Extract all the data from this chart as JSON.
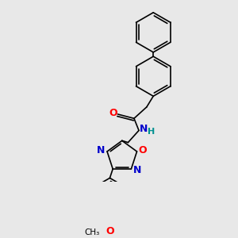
{
  "bg_color": "#e8e8e8",
  "line_color": "#000000",
  "bond_lw": 1.2,
  "atom_colors": {
    "O": "#ff0000",
    "N": "#0000cc",
    "H": "#009090"
  },
  "figsize": [
    3.0,
    3.0
  ],
  "dpi": 100
}
